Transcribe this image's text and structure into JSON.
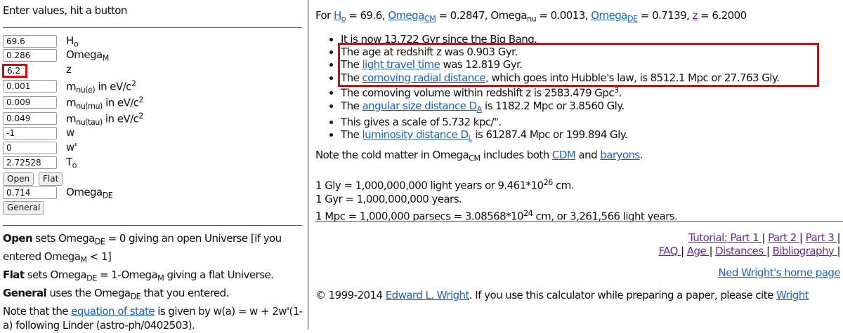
{
  "left": {
    "title": "Enter values, hit a button",
    "inputs": [
      {
        "value": "69.6",
        "label": [
          [
            "H"
          ],
          [
            "o",
            "sub"
          ]
        ]
      },
      {
        "value": "0.286",
        "label": [
          [
            "Omega"
          ],
          [
            "M",
            "sub"
          ]
        ]
      },
      {
        "value": "6.2",
        "label": [
          [
            "z"
          ]
        ],
        "highlight": true
      },
      {
        "value": "0.001",
        "label": [
          [
            "m"
          ],
          [
            "nu(e)",
            "sub"
          ],
          [
            " in eV/c"
          ],
          [
            "2",
            "sup"
          ]
        ]
      },
      {
        "value": "0.009",
        "label": [
          [
            "m"
          ],
          [
            "nu(mu)",
            "sub"
          ],
          [
            " in eV/c"
          ],
          [
            "2",
            "sup"
          ]
        ]
      },
      {
        "value": "0.049",
        "label": [
          [
            "m"
          ],
          [
            "nu(tau)",
            "sub"
          ],
          [
            " in eV/c"
          ],
          [
            "2",
            "sup"
          ]
        ]
      },
      {
        "value": "-1",
        "label": [
          [
            "w"
          ]
        ]
      },
      {
        "value": "0",
        "label": [
          [
            "w'"
          ]
        ]
      },
      {
        "value": "2.72528",
        "label": [
          [
            "T"
          ],
          [
            "o",
            "sub"
          ]
        ]
      }
    ],
    "buttons": [
      "Open",
      "Flat"
    ],
    "omega_de": {
      "value": "0.714",
      "label": [
        [
          "Omega"
        ],
        [
          "DE",
          "sub"
        ]
      ]
    },
    "general_button": "General",
    "help": [
      [
        [
          "Open",
          "b"
        ],
        [
          " sets Omega"
        ],
        [
          "DE",
          "sub"
        ],
        [
          " = 0 giving an open Universe [if you entered Omega"
        ],
        [
          "M",
          "sub"
        ],
        [
          " < 1]"
        ]
      ],
      [
        [
          "Flat",
          "b"
        ],
        [
          " sets Omega"
        ],
        [
          "DE",
          "sub"
        ],
        [
          " = 1-Omega"
        ],
        [
          "M",
          "sub"
        ],
        [
          " giving a flat Universe."
        ]
      ],
      [
        [
          "General",
          "b"
        ],
        [
          " uses the Omega"
        ],
        [
          "DE",
          "sub"
        ],
        [
          " that you entered."
        ]
      ],
      [
        [
          "Note that the "
        ],
        [
          "equation of state",
          "a"
        ],
        [
          " is given by w(a) = w + 2w'(1-a) following Linder (astro-ph/0402503)."
        ]
      ]
    ]
  },
  "right": {
    "header": [
      [
        "For "
      ],
      [
        "H",
        "a"
      ],
      [
        "o",
        "a sub"
      ],
      [
        " = 69.6, "
      ],
      [
        "Omega",
        "a"
      ],
      [
        "CM",
        "a sub"
      ],
      [
        " = 0.2847, Omega"
      ],
      [
        "nu",
        "sub"
      ],
      [
        " = 0.0013, "
      ],
      [
        "Omega",
        "a"
      ],
      [
        "DE",
        "a sub"
      ],
      [
        " = 0.7139, "
      ],
      [
        "z",
        "av"
      ],
      [
        " = 6.2000"
      ]
    ],
    "bullets": [
      [
        [
          "It is now 13.722 Gyr since the Big Bang."
        ]
      ],
      [
        [
          "The age at redshift z was 0.903 Gyr."
        ]
      ],
      [
        [
          "The "
        ],
        [
          "light travel time",
          "a"
        ],
        [
          " was 12.819 Gyr."
        ]
      ],
      [
        [
          "The "
        ],
        [
          "comoving radial distance,",
          "a"
        ],
        [
          " which goes into Hubble's law, is 8512.1 Mpc or 27.763 Gly."
        ]
      ],
      [
        [
          "The comoving volume within redshift z is 2583.479 Gpc"
        ],
        [
          "3",
          "sup"
        ],
        [
          "."
        ]
      ],
      [
        [
          "The "
        ],
        [
          "angular size distance D",
          "a"
        ],
        [
          "A",
          "a sub"
        ],
        [
          " is 1182.2 Mpc or 3.8560 Gly."
        ]
      ],
      [
        [
          "This gives a scale of 5.732 kpc/\"."
        ]
      ],
      [
        [
          "The "
        ],
        [
          "luminosity distance D",
          "a"
        ],
        [
          "L",
          "a sub"
        ],
        [
          " is 61287.4 Mpc or 199.894 Gly."
        ]
      ]
    ],
    "highlighted_bullets": [
      1,
      2,
      3
    ],
    "note": [
      [
        "Note the cold matter in Omega"
      ],
      [
        "CM",
        "sub"
      ],
      [
        " includes both "
      ],
      [
        "CDM",
        "a"
      ],
      [
        " and "
      ],
      [
        "baryons",
        "a"
      ],
      [
        "."
      ]
    ],
    "units": [
      [
        [
          "1 Gly = 1,000,000,000 light years or 9.461*10"
        ],
        [
          "26",
          "sup"
        ],
        [
          " cm."
        ]
      ],
      [
        [
          "1 Gyr = 1,000,000,000 years."
        ]
      ],
      [
        [
          "1 Mpc = 1,000,000 parsecs = 3.08568*10"
        ],
        [
          "24",
          "sup"
        ],
        [
          " cm, or 3,261,566 light years."
        ]
      ]
    ],
    "nav": [
      [
        [
          "Tutorial: Part 1 ",
          "av"
        ],
        [
          "| "
        ],
        [
          "Part 2 ",
          "av"
        ],
        [
          "| "
        ],
        [
          "Part 3 ",
          "av"
        ],
        [
          "|"
        ]
      ],
      [
        [
          "FAQ ",
          "av"
        ],
        [
          "| "
        ],
        [
          "Age ",
          "av"
        ],
        [
          "| "
        ],
        [
          "Distances ",
          "av"
        ],
        [
          "| "
        ],
        [
          "Bibliography ",
          "av"
        ],
        [
          "|"
        ]
      ]
    ],
    "home": [
      [
        "Ned Wright's home page",
        "a"
      ]
    ],
    "copyright": [
      [
        "© 1999-2014 "
      ],
      [
        "Edward L. Wright",
        "a"
      ],
      [
        ". If you use this calculator while preparing a paper, please cite "
      ],
      [
        "Wright",
        "a"
      ]
    ]
  }
}
